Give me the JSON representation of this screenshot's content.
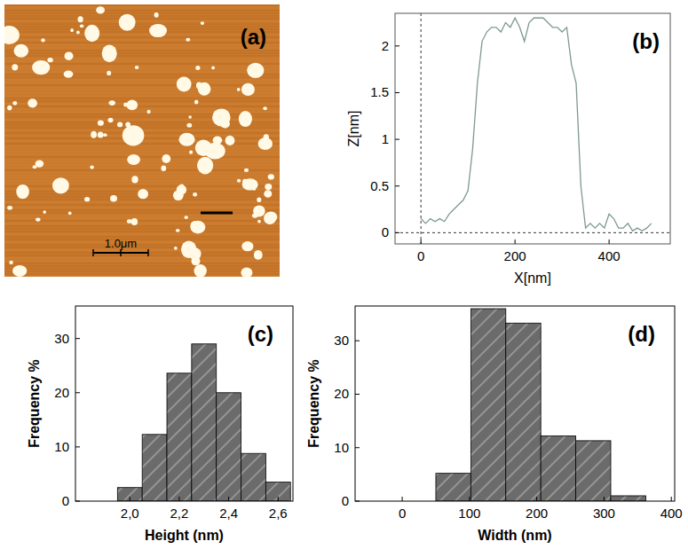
{
  "chart_data": [
    {
      "type": "image",
      "title": "(a)",
      "annotations": [
        "1.0μm"
      ],
      "color": "#c8792c"
    },
    {
      "type": "line",
      "title": "(b)",
      "x_label": "X[nm]",
      "y_label": "Z[nm]",
      "color": "#7f9a8c",
      "x": [
        0,
        10,
        20,
        30,
        40,
        50,
        60,
        70,
        80,
        90,
        100,
        110,
        120,
        130,
        140,
        150,
        160,
        170,
        180,
        190,
        200,
        210,
        220,
        230,
        240,
        250,
        260,
        270,
        280,
        290,
        300,
        310,
        320,
        330,
        340,
        350,
        360,
        370,
        380,
        390,
        400,
        410,
        420,
        430,
        440,
        450,
        460,
        470,
        480,
        490
      ],
      "values": [
        0.15,
        0.1,
        0.15,
        0.12,
        0.15,
        0.12,
        0.2,
        0.25,
        0.3,
        0.35,
        0.45,
        0.9,
        1.6,
        2.05,
        2.15,
        2.2,
        2.2,
        2.15,
        2.25,
        2.2,
        2.3,
        2.2,
        2.05,
        2.25,
        2.3,
        2.3,
        2.3,
        2.25,
        2.2,
        2.2,
        2.15,
        2.2,
        1.8,
        1.6,
        0.5,
        0.05,
        0.1,
        0.05,
        0.1,
        0.05,
        0.2,
        0.15,
        0.05,
        0.05,
        0.1,
        0.02,
        0.05,
        0.02,
        0.05,
        0.1
      ],
      "xlim": [
        -55,
        530
      ],
      "xticks": [
        0,
        200,
        400
      ],
      "ylim": [
        -0.12,
        2.35
      ],
      "yticks": [
        0,
        0.5,
        1,
        1.5,
        2
      ]
    },
    {
      "type": "histogram",
      "title": "(c)",
      "x_label": "Height (nm)",
      "y_label": "Frequency %",
      "color": "#6b6b6b",
      "bins": [
        1.95,
        2.05,
        2.15,
        2.25,
        2.35,
        2.45,
        2.55,
        2.65
      ],
      "values": [
        2.5,
        12.3,
        23.6,
        29,
        20,
        8.8,
        3.5
      ],
      "xlim": [
        1.78,
        2.66
      ],
      "xticks": [
        {
          "value": 2.0,
          "label": "2,0"
        },
        {
          "value": 2.2,
          "label": "2,2"
        },
        {
          "value": 2.4,
          "label": "2,4"
        },
        {
          "value": 2.6,
          "label": "2,6"
        }
      ],
      "ylim": [
        0,
        36
      ],
      "yticks": [
        0,
        10,
        20,
        30
      ]
    },
    {
      "type": "histogram",
      "title": "(d)",
      "x_label": "Width (nm)",
      "y_label": "Frequency %",
      "color": "#6b6b6b",
      "bins": [
        50,
        102,
        154,
        206,
        258,
        310,
        362
      ],
      "values": [
        5.2,
        36,
        33.3,
        12.2,
        11.3,
        1.0
      ],
      "xlim": [
        -70,
        405
      ],
      "xticks": [
        0,
        100,
        200,
        300,
        400
      ],
      "ylim": [
        0,
        36.5
      ],
      "yticks": [
        0,
        10,
        20,
        30
      ]
    }
  ]
}
